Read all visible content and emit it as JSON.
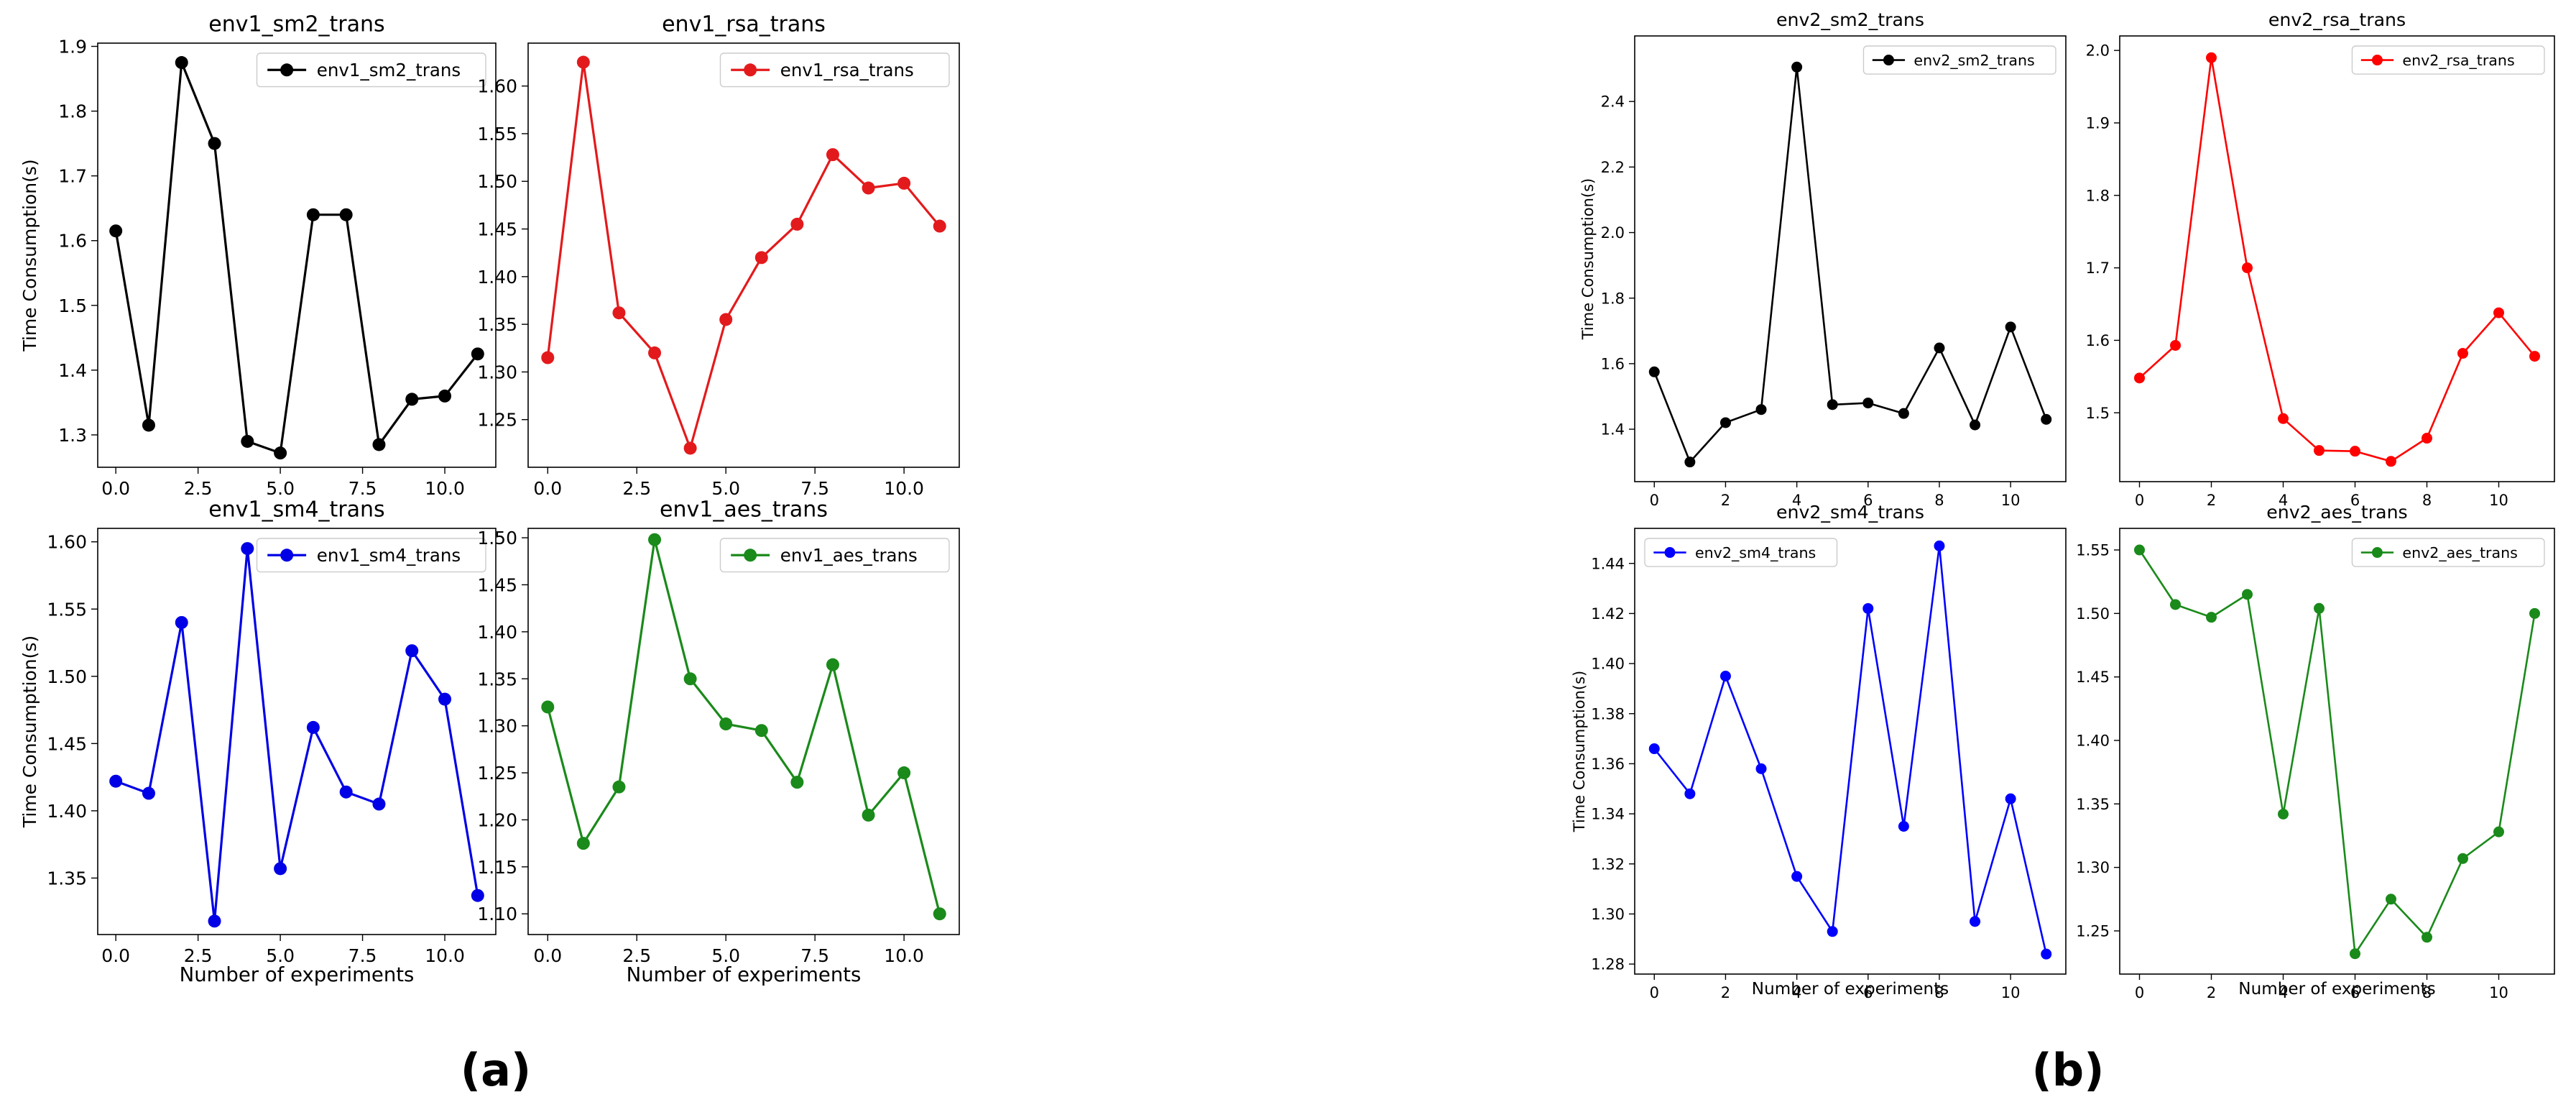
{
  "captions": {
    "a": "(a)",
    "b": "(b)"
  },
  "chart_data": [
    {
      "type": "line",
      "group": "a",
      "title": "env1_sm2_trans",
      "xlabel": "",
      "ylabel": "Time Consumption(s)",
      "xlim": [
        -0.55,
        11.55
      ],
      "ylim": [
        1.25,
        1.905
      ],
      "xticks": [
        0.0,
        2.5,
        5.0,
        7.5,
        10.0
      ],
      "xtick_labels": [
        "0.0",
        "2.5",
        "5.0",
        "7.5",
        "10.0"
      ],
      "yticks": [
        1.3,
        1.4,
        1.5,
        1.6,
        1.7,
        1.8,
        1.9
      ],
      "ytick_labels": [
        "1.3",
        "1.4",
        "1.5",
        "1.6",
        "1.7",
        "1.8",
        "1.9"
      ],
      "legend_position": "top-right",
      "color": "#000000",
      "series": [
        {
          "name": "env1_sm2_trans",
          "x": [
            0,
            1,
            2,
            3,
            4,
            5,
            6,
            7,
            8,
            9,
            10,
            11
          ],
          "values": [
            1.615,
            1.315,
            1.875,
            1.75,
            1.29,
            1.272,
            1.64,
            1.64,
            1.285,
            1.355,
            1.36,
            1.425
          ]
        }
      ]
    },
    {
      "type": "line",
      "group": "a",
      "title": "env1_rsa_trans",
      "xlabel": "",
      "ylabel": "",
      "xlim": [
        -0.55,
        11.55
      ],
      "ylim": [
        1.2,
        1.645
      ],
      "xticks": [
        0.0,
        2.5,
        5.0,
        7.5,
        10.0
      ],
      "xtick_labels": [
        "0.0",
        "2.5",
        "5.0",
        "7.5",
        "10.0"
      ],
      "yticks": [
        1.25,
        1.3,
        1.35,
        1.4,
        1.45,
        1.5,
        1.55,
        1.6
      ],
      "ytick_labels": [
        "1.25",
        "1.30",
        "1.35",
        "1.40",
        "1.45",
        "1.50",
        "1.55",
        "1.60"
      ],
      "legend_position": "top-right",
      "color": "#e31a1c",
      "series": [
        {
          "name": "env1_rsa_trans",
          "x": [
            0,
            1,
            2,
            3,
            4,
            5,
            6,
            7,
            8,
            9,
            10,
            11
          ],
          "values": [
            1.315,
            1.625,
            1.362,
            1.32,
            1.22,
            1.355,
            1.42,
            1.455,
            1.528,
            1.493,
            1.498,
            1.453
          ]
        }
      ]
    },
    {
      "type": "line",
      "group": "a",
      "title": "env1_sm4_trans",
      "xlabel": "Number of experiments",
      "ylabel": "Time Consumption(s)",
      "xlim": [
        -0.55,
        11.55
      ],
      "ylim": [
        1.308,
        1.61
      ],
      "xticks": [
        0.0,
        2.5,
        5.0,
        7.5,
        10.0
      ],
      "xtick_labels": [
        "0.0",
        "2.5",
        "5.0",
        "7.5",
        "10.0"
      ],
      "yticks": [
        1.35,
        1.4,
        1.45,
        1.5,
        1.55,
        1.6
      ],
      "ytick_labels": [
        "1.35",
        "1.40",
        "1.45",
        "1.50",
        "1.55",
        "1.60"
      ],
      "legend_position": "top-right",
      "color": "#0000e6",
      "series": [
        {
          "name": "env1_sm4_trans",
          "x": [
            0,
            1,
            2,
            3,
            4,
            5,
            6,
            7,
            8,
            9,
            10,
            11
          ],
          "values": [
            1.422,
            1.413,
            1.54,
            1.318,
            1.595,
            1.357,
            1.462,
            1.414,
            1.405,
            1.519,
            1.483,
            1.337
          ]
        }
      ]
    },
    {
      "type": "line",
      "group": "a",
      "title": "env1_aes_trans",
      "xlabel": "Number of experiments",
      "ylabel": "",
      "xlim": [
        -0.55,
        11.55
      ],
      "ylim": [
        1.078,
        1.51
      ],
      "xticks": [
        0.0,
        2.5,
        5.0,
        7.5,
        10.0
      ],
      "xtick_labels": [
        "0.0",
        "2.5",
        "5.0",
        "7.5",
        "10.0"
      ],
      "yticks": [
        1.1,
        1.15,
        1.2,
        1.25,
        1.3,
        1.35,
        1.4,
        1.45,
        1.5
      ],
      "ytick_labels": [
        "1.10",
        "1.15",
        "1.20",
        "1.25",
        "1.30",
        "1.35",
        "1.40",
        "1.45",
        "1.50"
      ],
      "legend_position": "top-right",
      "color": "#1a8a1a",
      "series": [
        {
          "name": "env1_aes_trans",
          "x": [
            0,
            1,
            2,
            3,
            4,
            5,
            6,
            7,
            8,
            9,
            10,
            11
          ],
          "values": [
            1.32,
            1.175,
            1.235,
            1.498,
            1.35,
            1.302,
            1.295,
            1.24,
            1.365,
            1.205,
            1.25,
            1.1
          ]
        }
      ]
    },
    {
      "type": "line",
      "group": "b",
      "title": "env2_sm2_trans",
      "xlabel": "",
      "ylabel": "Time Consumption(s)",
      "xlim": [
        -0.55,
        11.55
      ],
      "ylim": [
        1.24,
        2.6
      ],
      "xticks": [
        0,
        2,
        4,
        6,
        8,
        10
      ],
      "xtick_labels": [
        "0",
        "2",
        "4",
        "6",
        "8",
        "10"
      ],
      "yticks": [
        1.4,
        1.6,
        1.8,
        2.0,
        2.2,
        2.4
      ],
      "ytick_labels": [
        "1.4",
        "1.6",
        "1.8",
        "2.0",
        "2.2",
        "2.4"
      ],
      "legend_position": "top-right",
      "color": "#000000",
      "series": [
        {
          "name": "env2_sm2_trans",
          "x": [
            0,
            1,
            2,
            3,
            4,
            5,
            6,
            7,
            8,
            9,
            10,
            11
          ],
          "values": [
            1.575,
            1.3,
            1.42,
            1.46,
            2.505,
            1.475,
            1.48,
            1.448,
            1.648,
            1.413,
            1.712,
            1.43
          ]
        }
      ]
    },
    {
      "type": "line",
      "group": "b",
      "title": "env2_rsa_trans",
      "xlabel": "",
      "ylabel": "",
      "xlim": [
        -0.55,
        11.55
      ],
      "ylim": [
        1.405,
        2.02
      ],
      "xticks": [
        0,
        2,
        4,
        6,
        8,
        10
      ],
      "xtick_labels": [
        "0",
        "2",
        "4",
        "6",
        "8",
        "10"
      ],
      "yticks": [
        1.5,
        1.6,
        1.7,
        1.8,
        1.9,
        2.0
      ],
      "ytick_labels": [
        "1.5",
        "1.6",
        "1.7",
        "1.8",
        "1.9",
        "2.0"
      ],
      "legend_position": "top-right",
      "color": "#ff0000",
      "series": [
        {
          "name": "env2_rsa_trans",
          "x": [
            0,
            1,
            2,
            3,
            4,
            5,
            6,
            7,
            8,
            9,
            10,
            11
          ],
          "values": [
            1.548,
            1.593,
            1.99,
            1.7,
            1.492,
            1.448,
            1.447,
            1.433,
            1.465,
            1.582,
            1.638,
            1.578
          ]
        }
      ]
    },
    {
      "type": "line",
      "group": "b",
      "title": "env2_sm4_trans",
      "xlabel": "Number of experiments",
      "ylabel": "Time Consumption(s)",
      "xlim": [
        -0.55,
        11.55
      ],
      "ylim": [
        1.276,
        1.454
      ],
      "xticks": [
        0,
        2,
        4,
        6,
        8,
        10
      ],
      "xtick_labels": [
        "0",
        "2",
        "4",
        "6",
        "8",
        "10"
      ],
      "yticks": [
        1.28,
        1.3,
        1.32,
        1.34,
        1.36,
        1.38,
        1.4,
        1.42,
        1.44
      ],
      "ytick_labels": [
        "1.28",
        "1.30",
        "1.32",
        "1.34",
        "1.36",
        "1.38",
        "1.40",
        "1.42",
        "1.44"
      ],
      "legend_position": "top-left",
      "color": "#0000ff",
      "series": [
        {
          "name": "env2_sm4_trans",
          "x": [
            0,
            1,
            2,
            3,
            4,
            5,
            6,
            7,
            8,
            9,
            10,
            11
          ],
          "values": [
            1.366,
            1.348,
            1.395,
            1.358,
            1.315,
            1.293,
            1.422,
            1.335,
            1.447,
            1.297,
            1.346,
            1.284
          ]
        }
      ]
    },
    {
      "type": "line",
      "group": "b",
      "title": "env2_aes_trans",
      "xlabel": "Number of experiments",
      "ylabel": "",
      "xlim": [
        -0.55,
        11.55
      ],
      "ylim": [
        1.216,
        1.567
      ],
      "xticks": [
        0,
        2,
        4,
        6,
        8,
        10
      ],
      "xtick_labels": [
        "0",
        "2",
        "4",
        "6",
        "8",
        "10"
      ],
      "yticks": [
        1.25,
        1.3,
        1.35,
        1.4,
        1.45,
        1.5,
        1.55
      ],
      "ytick_labels": [
        "1.25",
        "1.30",
        "1.35",
        "1.40",
        "1.45",
        "1.50",
        "1.55"
      ],
      "legend_position": "top-right",
      "color": "#1a8a1a",
      "series": [
        {
          "name": "env2_aes_trans",
          "x": [
            0,
            1,
            2,
            3,
            4,
            5,
            6,
            7,
            8,
            9,
            10,
            11
          ],
          "values": [
            1.55,
            1.507,
            1.497,
            1.515,
            1.342,
            1.504,
            1.232,
            1.275,
            1.245,
            1.307,
            1.328,
            1.5
          ]
        }
      ]
    }
  ]
}
